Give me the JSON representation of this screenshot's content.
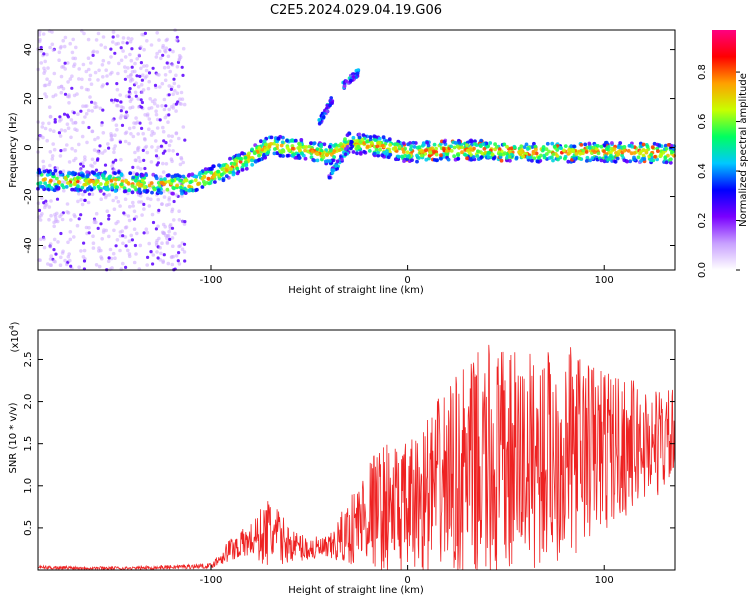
{
  "title": "C2E5.2024.029.04.19.G06",
  "chart_data": [
    {
      "type": "heatmap",
      "title": "C2E5.2024.029.04.19.G06",
      "xlabel": "Height of straight line (km)",
      "ylabel": "Frequency (Hz)",
      "xlim": [
        -188,
        136
      ],
      "ylim": [
        -50,
        48
      ],
      "x_ticks": [
        -100,
        0,
        100
      ],
      "y_ticks": [
        -40,
        -20,
        0,
        20,
        40
      ],
      "colorbar": {
        "label": "Normalized spectral amplitude",
        "range": [
          0,
          0.97
        ],
        "ticks": [
          0.0,
          0.2,
          0.4,
          0.6,
          0.8
        ],
        "colormap": [
          "#ffffff",
          "#c8a0ff",
          "#7a00ff",
          "#0000ff",
          "#00c8ff",
          "#00ff60",
          "#c8ff00",
          "#ffa000",
          "#ff0000",
          "#ff0080"
        ]
      },
      "ridge": {
        "x": [
          -188,
          -170,
          -150,
          -130,
          -110,
          -100,
          -90,
          -80,
          -70,
          -60,
          -50,
          -40,
          -30,
          -20,
          -10,
          0,
          20,
          40,
          60,
          80,
          100,
          120,
          136
        ],
        "y": [
          -13,
          -14,
          -14,
          -15,
          -15,
          -12,
          -8,
          -4,
          1,
          0,
          -1,
          -3,
          2,
          1,
          0,
          -2,
          -1,
          -1,
          -2,
          -2,
          -2,
          -2,
          -3
        ]
      },
      "secondary_features": [
        {
          "x": [
            -40,
            -28
          ],
          "y": [
            -12,
            2
          ]
        },
        {
          "x": [
            -45,
            -38
          ],
          "y": [
            10,
            20
          ]
        },
        {
          "x": [
            -33,
            -25
          ],
          "y": [
            25,
            31
          ]
        }
      ]
    },
    {
      "type": "line",
      "xlabel": "Height of straight line (km)",
      "ylabel": "SNR (10 * v/v)",
      "y_multiplier": "(x10",
      "y_multiplier_exp": "4",
      "xlim": [
        -188,
        136
      ],
      "ylim": [
        0,
        2.85
      ],
      "x_ticks": [
        -100,
        0,
        100
      ],
      "y_ticks": [
        0.5,
        1.0,
        1.5,
        2.0,
        2.5
      ],
      "color": "#ee2222",
      "envelope": {
        "x": [
          -188,
          -140,
          -100,
          -90,
          -80,
          -70,
          -60,
          -50,
          -40,
          -30,
          -20,
          -10,
          0,
          20,
          40,
          60,
          80,
          100,
          120,
          136
        ],
        "mean": [
          0.03,
          0.02,
          0.05,
          0.25,
          0.35,
          0.45,
          0.3,
          0.25,
          0.25,
          0.45,
          0.7,
          0.75,
          0.7,
          1.1,
          1.2,
          1.3,
          1.4,
          1.45,
          1.5,
          1.55
        ],
        "amplitude": [
          0.02,
          0.02,
          0.03,
          0.15,
          0.2,
          0.45,
          0.2,
          0.15,
          0.15,
          0.4,
          0.65,
          0.8,
          0.8,
          1.1,
          1.5,
          1.3,
          1.3,
          1.0,
          0.7,
          0.6
        ]
      }
    }
  ]
}
